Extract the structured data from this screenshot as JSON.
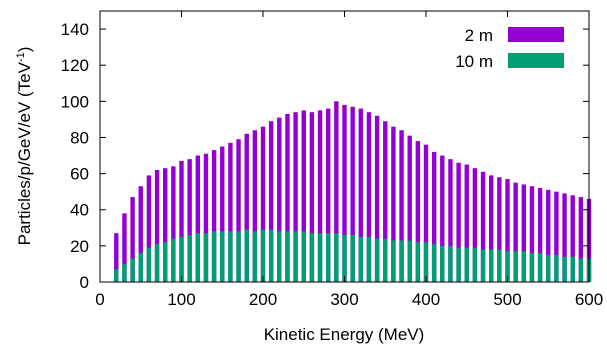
{
  "chart_data": {
    "type": "bar",
    "xlabel": "Kinetic Energy (MeV)",
    "ylabel_parts": [
      "Particles/p/GeV/eV (TeV",
      "-1",
      ")"
    ],
    "xlim": [
      0,
      600
    ],
    "ylim": [
      0,
      150
    ],
    "xticks": [
      0,
      100,
      200,
      300,
      400,
      500,
      600
    ],
    "yticks": [
      0,
      20,
      40,
      60,
      80,
      100,
      120,
      140
    ],
    "grid": false,
    "legend": "top-right",
    "colors": {
      "2 m": "#9400d3",
      "10 m": "#009e73"
    },
    "x": [
      20,
      30,
      40,
      50,
      60,
      70,
      80,
      90,
      100,
      110,
      120,
      130,
      140,
      150,
      160,
      170,
      180,
      190,
      200,
      210,
      220,
      230,
      240,
      250,
      260,
      270,
      280,
      290,
      300,
      310,
      320,
      330,
      340,
      350,
      360,
      370,
      380,
      390,
      400,
      410,
      420,
      430,
      440,
      450,
      460,
      470,
      480,
      490,
      500,
      510,
      520,
      530,
      540,
      550,
      560,
      570,
      580,
      590,
      600
    ],
    "series": [
      {
        "name": "2 m",
        "values": [
          27,
          38,
          47,
          53,
          59,
          62,
          63,
          64,
          67,
          68,
          70,
          71,
          73,
          75,
          77,
          79,
          82,
          84,
          86,
          89,
          91,
          93,
          94,
          95,
          94,
          95,
          96,
          100,
          98,
          97,
          96,
          94,
          92,
          89,
          86,
          84,
          81,
          78,
          76,
          72,
          70,
          68,
          66,
          65,
          63,
          61,
          59,
          58,
          57,
          55,
          54,
          53,
          52,
          51,
          50,
          49,
          48,
          47,
          46
        ]
      },
      {
        "name": "10 m",
        "values": [
          7,
          10,
          13,
          16,
          19,
          21,
          22,
          24,
          25,
          26,
          27,
          27,
          28,
          28,
          28,
          28,
          29,
          28,
          29,
          29,
          28,
          28,
          28,
          28,
          27,
          27,
          27,
          27,
          26,
          26,
          25,
          25,
          24,
          24,
          23,
          23,
          23,
          22,
          22,
          21,
          20,
          20,
          19,
          19,
          19,
          18,
          18,
          18,
          17,
          17,
          17,
          16,
          16,
          15,
          15,
          14,
          14,
          13,
          13
        ]
      }
    ]
  }
}
